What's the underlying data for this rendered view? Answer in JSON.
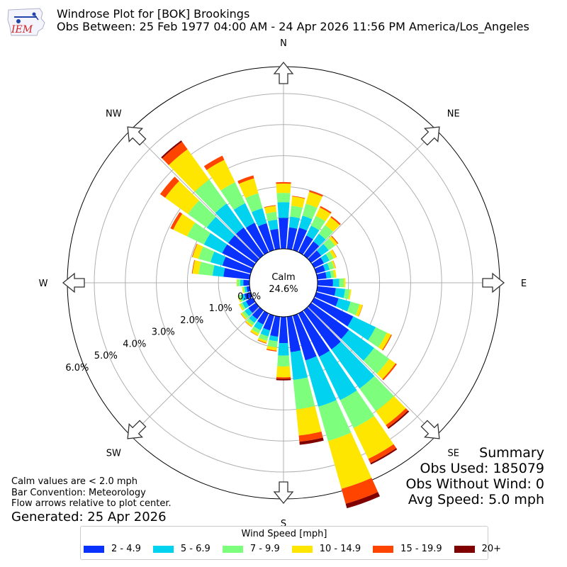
{
  "header": {
    "logo_text": "IEM",
    "title_line1": "Windrose Plot for [BOK] Brookings",
    "title_line2": "Obs Between: 25 Feb 1977 04:00 AM - 24 Apr 2026 11:56 PM America/Los_Angeles"
  },
  "summary": {
    "heading": "Summary",
    "obs_used": "Obs Used: 185079",
    "obs_without_wind": "Obs Without Wind: 0",
    "avg_speed": "Avg Speed: 5.0 mph"
  },
  "notes": {
    "line1": "Calm values are < 2.0 mph",
    "line2": "Bar Convention: Meteorology",
    "line3": "Flow arrows relative to plot center.",
    "generated": "Generated: 25 Apr 2026"
  },
  "legend": {
    "title": "Wind Speed [mph]"
  },
  "colors": {
    "bins": [
      "#0a32ff",
      "#00d2f0",
      "#7dff7d",
      "#ffe600",
      "#ff4400",
      "#800000"
    ]
  },
  "chart_data": {
    "type": "windrose",
    "units": "percent",
    "calm": {
      "label": "Calm",
      "value": "24.6%"
    },
    "rings": [
      0,
      1,
      2,
      3,
      4,
      5,
      6
    ],
    "ring_labels": [
      "0.0%",
      "1.0%",
      "2.0%",
      "3.0%",
      "4.0%",
      "5.0%",
      "6.0%"
    ],
    "directions": [
      "N",
      "NE",
      "E",
      "SE",
      "S",
      "SW",
      "W",
      "NW"
    ],
    "speed_bins": [
      "2 - 4.9",
      "5 - 6.9",
      "7 - 9.9",
      "10 - 14.9",
      "15 - 19.9",
      "20+"
    ],
    "sectors": [
      {
        "dir": 0,
        "c": [
          1.0,
          1.5,
          1.8,
          2.1,
          2.15,
          2.15
        ]
      },
      {
        "dir": 10,
        "c": [
          0.7,
          1.05,
          1.4,
          1.7,
          1.72,
          1.72
        ]
      },
      {
        "dir": 20,
        "c": [
          0.75,
          1.15,
          1.55,
          1.95,
          2.0,
          2.0
        ]
      },
      {
        "dir": 30,
        "c": [
          0.6,
          0.95,
          1.3,
          1.6,
          1.65,
          1.65
        ]
      },
      {
        "dir": 40,
        "c": [
          0.55,
          0.85,
          1.2,
          1.5,
          1.55,
          1.55
        ]
      },
      {
        "dir": 50,
        "c": [
          0.4,
          0.7,
          0.95,
          1.05,
          1.08,
          1.08
        ]
      },
      {
        "dir": 60,
        "c": [
          0.35,
          0.55,
          0.7,
          0.8,
          0.81,
          0.81
        ]
      },
      {
        "dir": 70,
        "c": [
          0.3,
          0.45,
          0.6,
          0.65,
          0.66,
          0.66
        ]
      },
      {
        "dir": 80,
        "c": [
          0.3,
          0.45,
          0.55,
          0.62,
          0.62,
          0.62
        ]
      },
      {
        "dir": 90,
        "c": [
          0.5,
          0.7,
          0.85,
          0.9,
          0.9,
          0.9
        ]
      },
      {
        "dir": 100,
        "c": [
          0.6,
          0.9,
          1.05,
          1.1,
          1.1,
          1.1
        ]
      },
      {
        "dir": 110,
        "c": [
          0.75,
          1.15,
          1.45,
          1.55,
          1.56,
          1.56
        ]
      },
      {
        "dir": 120,
        "c": [
          1.4,
          2.2,
          2.6,
          2.75,
          2.78,
          2.78
        ]
      },
      {
        "dir": 130,
        "c": [
          1.5,
          2.5,
          3.1,
          3.35,
          3.4,
          3.4
        ]
      },
      {
        "dir": 140,
        "c": [
          1.55,
          3.1,
          4.0,
          4.55,
          4.65,
          4.7
        ]
      },
      {
        "dir": 150,
        "c": [
          1.55,
          3.1,
          4.1,
          5.2,
          5.35,
          5.4
        ]
      },
      {
        "dir": 160,
        "c": [
          1.5,
          3.05,
          4.2,
          5.8,
          6.3,
          6.45
        ]
      },
      {
        "dir": 170,
        "c": [
          1.15,
          2.05,
          3.0,
          3.85,
          4.05,
          4.15
        ]
      },
      {
        "dir": 180,
        "c": [
          0.85,
          1.25,
          1.6,
          1.95,
          2.0,
          2.05
        ]
      },
      {
        "dir": 190,
        "c": [
          0.65,
          0.8,
          1.0,
          1.1,
          1.13,
          1.13
        ]
      },
      {
        "dir": 200,
        "c": [
          0.5,
          0.7,
          0.85,
          0.92,
          0.94,
          0.94
        ]
      },
      {
        "dir": 210,
        "c": [
          0.4,
          0.6,
          0.72,
          0.8,
          0.81,
          0.81
        ]
      },
      {
        "dir": 220,
        "c": [
          0.35,
          0.5,
          0.6,
          0.66,
          0.67,
          0.67
        ]
      },
      {
        "dir": 230,
        "c": [
          0.3,
          0.45,
          0.55,
          0.6,
          0.61,
          0.61
        ]
      },
      {
        "dir": 240,
        "c": [
          0.25,
          0.38,
          0.45,
          0.5,
          0.5,
          0.5
        ]
      },
      {
        "dir": 250,
        "c": [
          0.22,
          0.33,
          0.4,
          0.44,
          0.44,
          0.44
        ]
      },
      {
        "dir": 260,
        "c": [
          0.1,
          0.17,
          0.22,
          0.25,
          0.25,
          0.25
        ]
      },
      {
        "dir": 270,
        "c": [
          0.2,
          0.3,
          0.4,
          0.42,
          0.42,
          0.42
        ]
      },
      {
        "dir": 280,
        "c": [
          0.85,
          1.2,
          1.65,
          1.85,
          1.87,
          1.87
        ]
      },
      {
        "dir": 290,
        "c": [
          0.95,
          1.35,
          1.75,
          1.95,
          1.97,
          1.97
        ]
      },
      {
        "dir": 300,
        "c": [
          1.1,
          1.75,
          2.35,
          2.85,
          2.95,
          2.95
        ]
      },
      {
        "dir": 310,
        "c": [
          1.1,
          1.95,
          2.7,
          3.6,
          3.8,
          3.8
        ]
      },
      {
        "dir": 320,
        "c": [
          1.1,
          2.05,
          3.0,
          4.2,
          4.5,
          4.55
        ]
      },
      {
        "dir": 330,
        "c": [
          1.05,
          1.75,
          2.5,
          3.3,
          3.45,
          3.45
        ]
      },
      {
        "dir": 340,
        "c": [
          0.9,
          1.4,
          1.9,
          2.4,
          2.5,
          2.5
        ]
      },
      {
        "dir": 350,
        "c": [
          0.65,
          0.95,
          1.2,
          1.4,
          1.42,
          1.42
        ]
      }
    ]
  }
}
